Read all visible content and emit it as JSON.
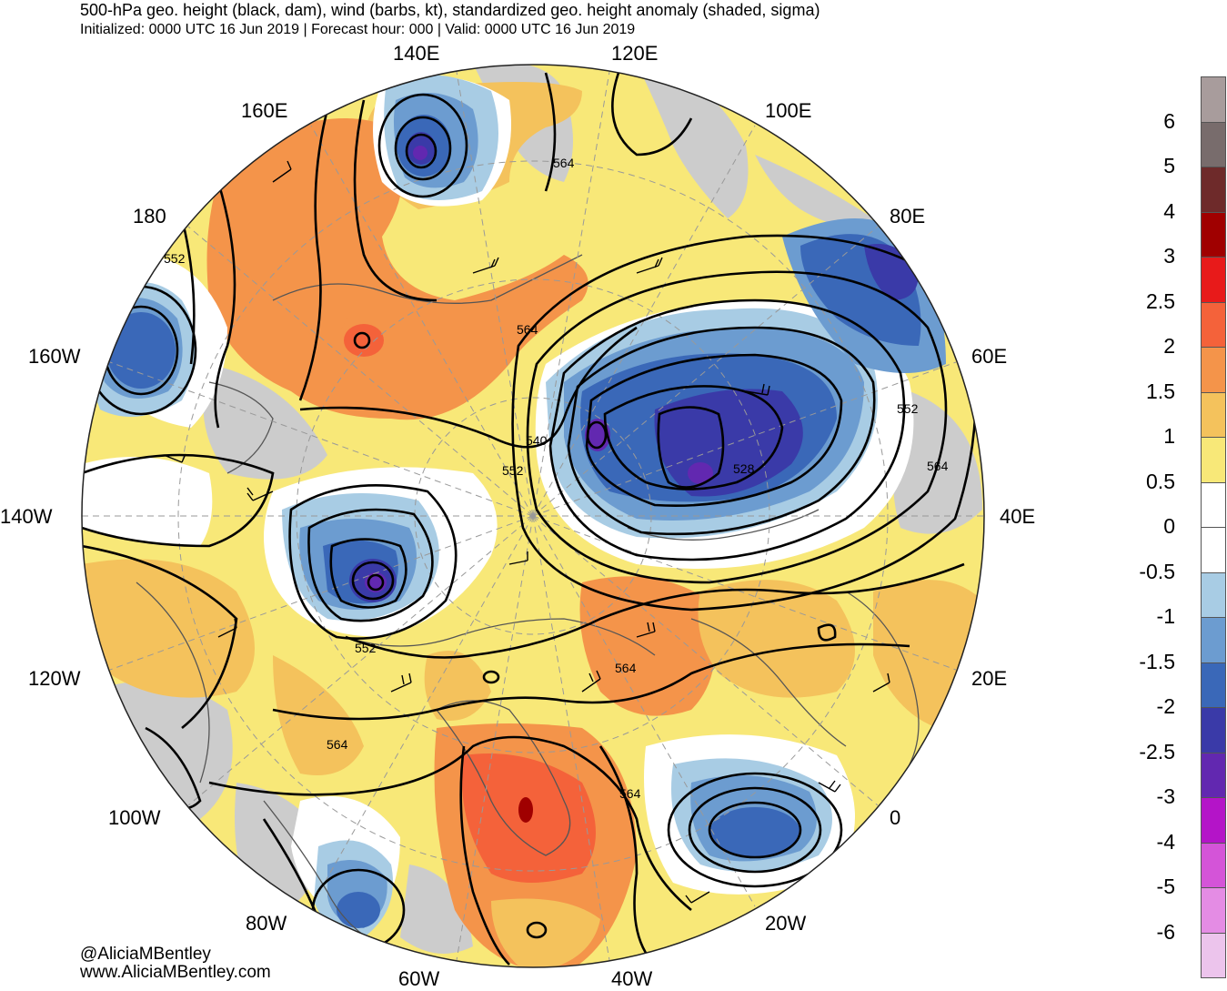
{
  "header": {
    "title": "500-hPa geo. height (black, dam), wind (barbs, kt), standardized geo. height anomaly (shaded, sigma)",
    "subtitle": "Initialized: 0000 UTC 16 Jun 2019 | Forecast hour: 000 | Valid: 0000 UTC 16 Jun 2019"
  },
  "longitude_labels": [
    "140E",
    "120E",
    "160E",
    "100E",
    "180",
    "80E",
    "160W",
    "60E",
    "140W",
    "40E",
    "120W",
    "20E",
    "100W",
    "0",
    "80W",
    "20W",
    "60W",
    "40W"
  ],
  "contour_labels": [
    "564",
    "552",
    "564",
    "540",
    "552",
    "552",
    "528",
    "564",
    "552",
    "564",
    "564",
    "564"
  ],
  "credits": {
    "handle": "@AliciaMBentley",
    "website": "www.AliciaMBentley.com"
  },
  "colorbar": {
    "labels": [
      "6",
      "5",
      "4",
      "3",
      "2.5",
      "2",
      "1.5",
      "1",
      "0.5",
      "0",
      "-0.5",
      "-1",
      "-1.5",
      "-2",
      "-2.5",
      "-3",
      "-4",
      "-5",
      "-6"
    ],
    "colors": [
      "#a89c9c",
      "#786c6c",
      "#6e2a2a",
      "#a00000",
      "#e81a1a",
      "#f4623a",
      "#f4944a",
      "#f4c25c",
      "#f8e878",
      "#ffffff",
      "#ffffff",
      "#a8cce4",
      "#6c9cd0",
      "#3a68b8",
      "#3a3aa8",
      "#6228b0",
      "#b414c8",
      "#d454d8",
      "#e48ce4",
      "#ecc4ec"
    ]
  }
}
